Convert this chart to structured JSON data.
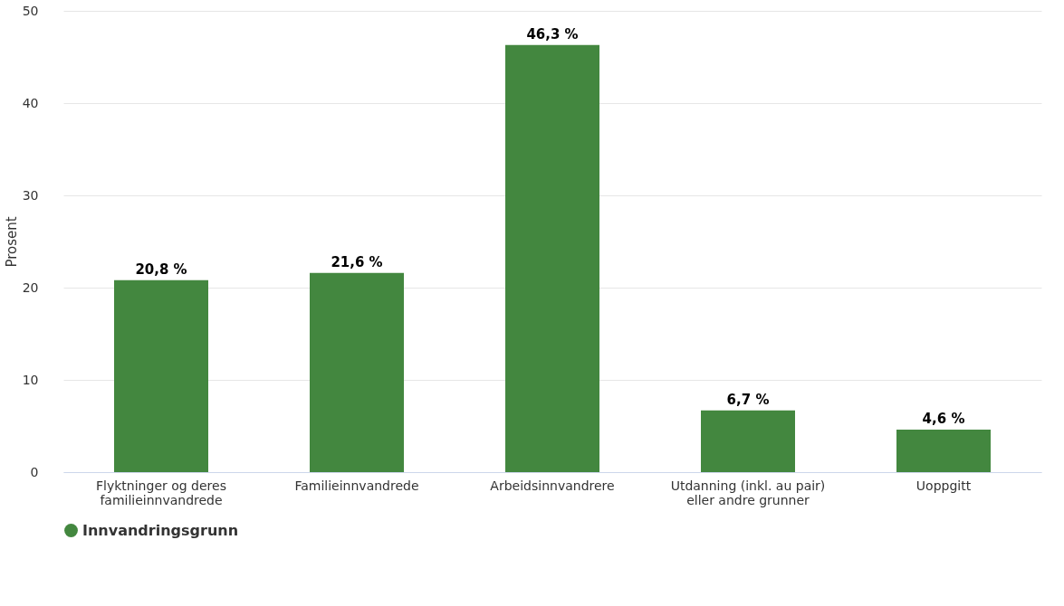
{
  "chart_data": {
    "type": "bar",
    "ylabel": "Prosent",
    "categories": [
      "Flyktninger og deres familieinnvandrede",
      "Familieinnvandrede",
      "Arbeidsinnvandrere",
      "Utdanning (inkl. au pair) eller andre grunner",
      "Uoppgitt"
    ],
    "series": [
      {
        "name": "Innvandringsgrunn",
        "color": "#43873f",
        "values": [
          20.8,
          21.6,
          46.3,
          6.7,
          4.6
        ],
        "value_labels": [
          "20,8 %",
          "21,6 %",
          "46,3 %",
          "6,7 %",
          "4,6 %"
        ]
      }
    ],
    "ylim": [
      0,
      50
    ],
    "yticks": [
      0,
      10,
      20,
      30,
      40,
      50
    ],
    "grid": "y",
    "legend": "bottom"
  }
}
